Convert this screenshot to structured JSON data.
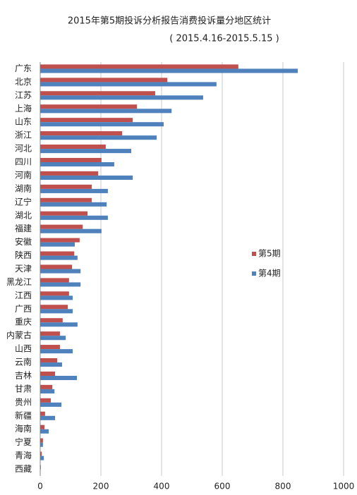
{
  "chart_data": {
    "type": "hbar",
    "title": "2015年第5期投诉分析报告消费投诉量分地区统计",
    "subtitle": "( 2015.4.16-2015.5.15 )",
    "categories": [
      "广东",
      "北京",
      "江苏",
      "上海",
      "山东",
      "浙江",
      "河北",
      "四川",
      "河南",
      "湖南",
      "辽宁",
      "湖北",
      "福建",
      "安徽",
      "陕西",
      "天津",
      "黑龙江",
      "江西",
      "广西",
      "重庆",
      "内蒙古",
      "山西",
      "云南",
      "吉林",
      "甘肃",
      "贵州",
      "新疆",
      "海南",
      "宁夏",
      "青海",
      "西藏"
    ],
    "series": [
      {
        "name": "第5期",
        "color": "#c0504d",
        "values": [
          653,
          419,
          379,
          319,
          305,
          270,
          216,
          202,
          191,
          170,
          170,
          156,
          140,
          130,
          112,
          105,
          95,
          95,
          91,
          74,
          65,
          65,
          56,
          49,
          40,
          35,
          16,
          14,
          9,
          5,
          2
        ]
      },
      {
        "name": "第4期",
        "color": "#4f81bd",
        "values": [
          849,
          581,
          537,
          433,
          407,
          384,
          300,
          244,
          305,
          223,
          219,
          223,
          202,
          114,
          123,
          133,
          133,
          107,
          107,
          123,
          84,
          107,
          72,
          121,
          47,
          70,
          49,
          28,
          9,
          12,
          1
        ]
      }
    ],
    "xlim": [
      0,
      1000
    ],
    "xticks": [
      0,
      200,
      400,
      600,
      800,
      1000
    ],
    "grid": true,
    "legend": "right"
  }
}
